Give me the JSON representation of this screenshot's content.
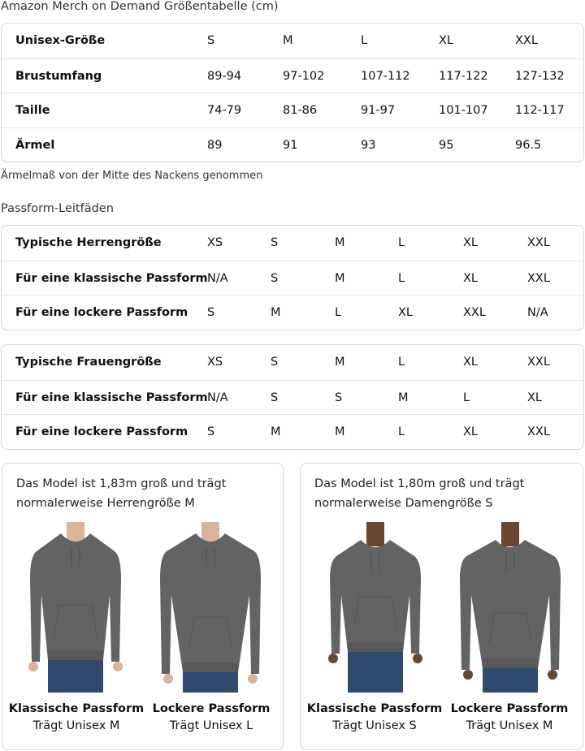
{
  "size_table": {
    "title": "Amazon Merch on Demand Größentabelle (cm)",
    "rows": [
      [
        "Unisex-Größe",
        "S",
        "M",
        "L",
        "XL",
        "XXL"
      ],
      [
        "Brustumfang",
        "89-94",
        "97-102",
        "107-112",
        "117-122",
        "127-132"
      ],
      [
        "Taille",
        "74-79",
        "81-86",
        "91-97",
        "101-107",
        "112-117"
      ],
      [
        "Ärmel",
        "89",
        "91",
        "93",
        "95",
        "96.5"
      ]
    ],
    "note": "Ärmelmaß von der Mitte des Nackens genommen"
  },
  "fit_guide": {
    "title": "Passform-Leitfäden",
    "men": [
      [
        "Typische Herrengröße",
        "XS",
        "S",
        "M",
        "L",
        "XL",
        "XXL"
      ],
      [
        "Für eine klassische Passform",
        "N/A",
        "S",
        "M",
        "L",
        "XL",
        "XXL"
      ],
      [
        "Für eine lockere Passform",
        "S",
        "M",
        "L",
        "XL",
        "XXL",
        "N/A"
      ]
    ],
    "women": [
      [
        "Typische Frauengröße",
        "XS",
        "S",
        "M",
        "L",
        "XL",
        "XXL"
      ],
      [
        "Für eine klassische Passform",
        "N/A",
        "S",
        "S",
        "M",
        "L",
        "XL"
      ],
      [
        "Für eine lockere Passform",
        "S",
        "M",
        "M",
        "L",
        "XL",
        "XXL"
      ]
    ]
  },
  "models": [
    {
      "caption_1": "Das Model ist 1,83m groß und trägt",
      "caption_2": "normalerweise Herrengröße M",
      "fits": [
        {
          "name": "Klassische Passform",
          "size": "Trägt Unisex M"
        },
        {
          "name": "Lockere Passform",
          "size": "Trägt Unisex L"
        }
      ]
    },
    {
      "caption_1": "Das Model ist 1,80m groß und trägt",
      "caption_2": "normalerweise Damengröße S",
      "fits": [
        {
          "name": "Klassische Passform",
          "size": "Trägt Unisex S"
        },
        {
          "name": "Lockere Passform",
          "size": "Trägt Unisex M"
        }
      ]
    }
  ],
  "colors": {
    "hoodie": "#636363",
    "jeans": "#2f4a6e",
    "skin_light": "#d9b39a",
    "skin_dark": "#6b4530",
    "border": "#d5d9d9"
  }
}
